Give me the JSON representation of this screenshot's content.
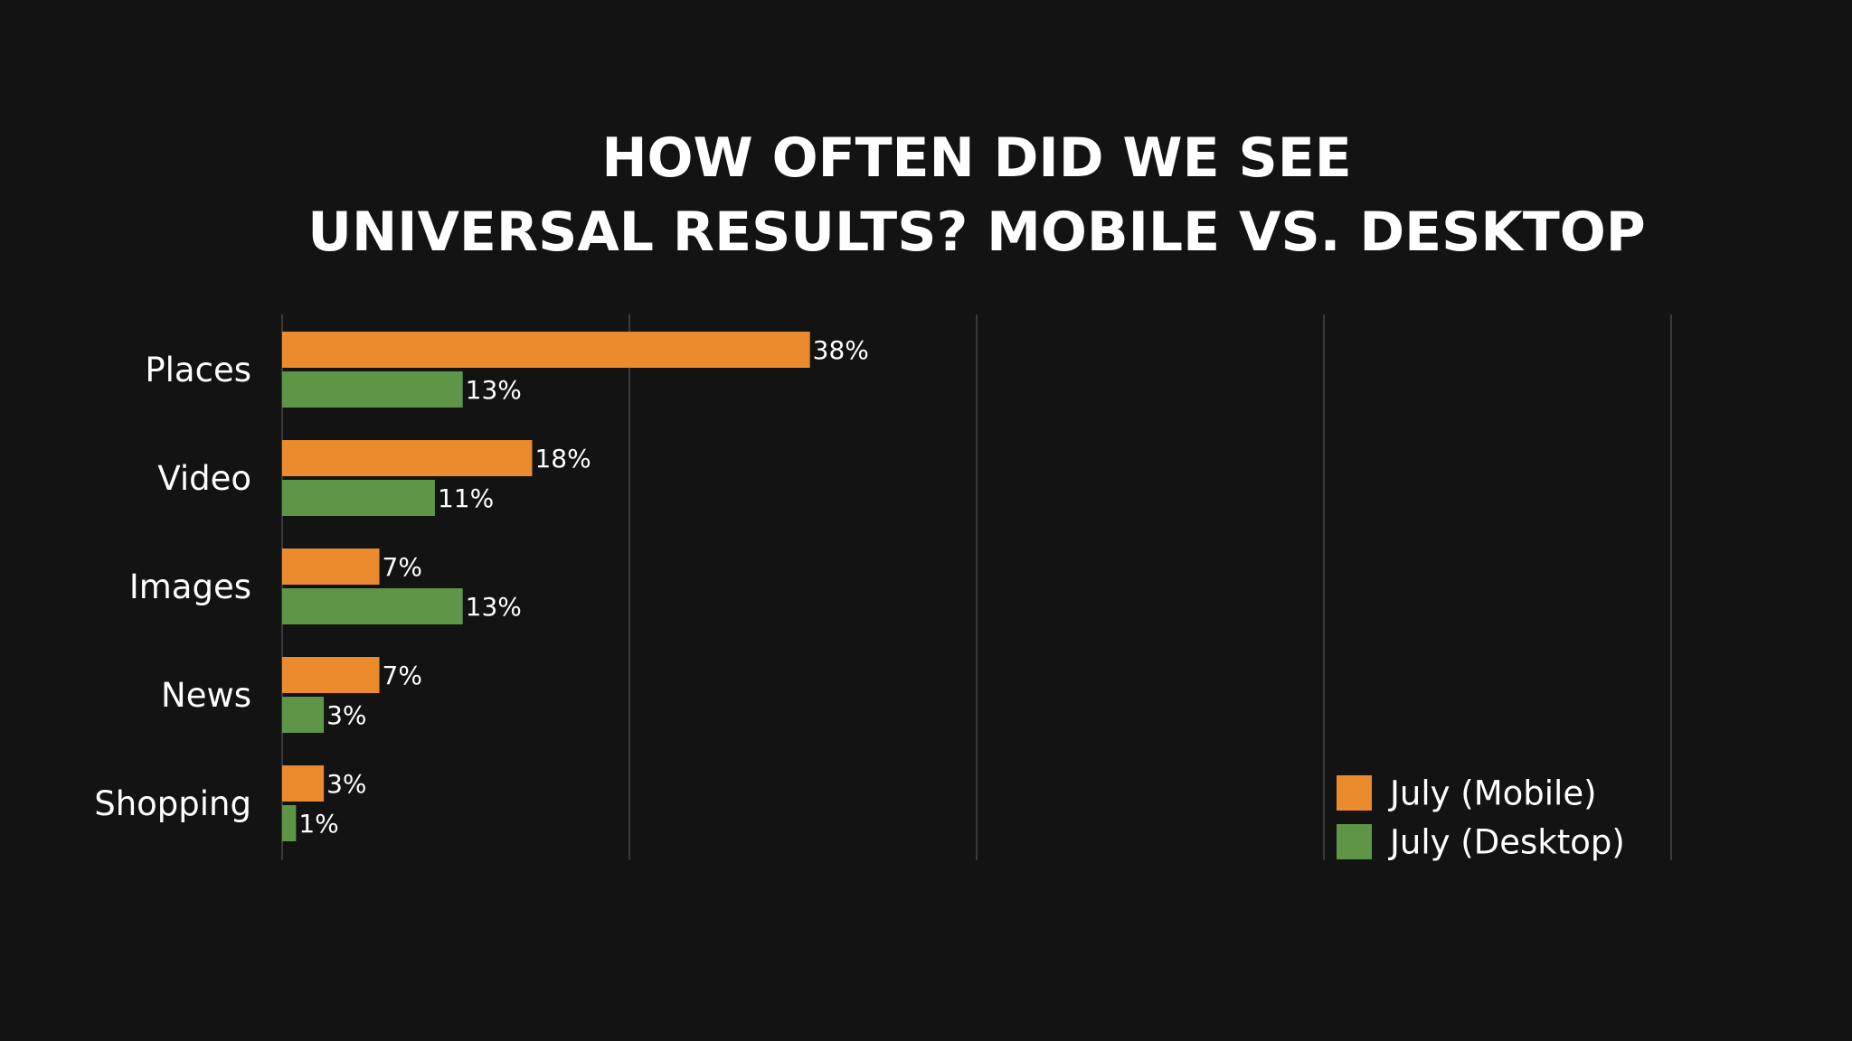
{
  "chart_data": {
    "type": "bar",
    "orientation": "horizontal",
    "title": "HOW OFTEN DID WE SEE UNIVERSAL RESULTS? MOBILE VS. DESKTOP",
    "title_lines": [
      "HOW OFTEN DID WE SEE",
      "UNIVERSAL RESULTS? MOBILE VS. DESKTOP"
    ],
    "categories": [
      "Places",
      "Video",
      "Images",
      "News",
      "Shopping"
    ],
    "series": [
      {
        "name": "July (Mobile)",
        "color": "#EB8B2D",
        "values": [
          38,
          18,
          7,
          7,
          3
        ],
        "labels": [
          "38%",
          "18%",
          "7%",
          "7%",
          "3%"
        ]
      },
      {
        "name": "July (Desktop)",
        "color": "#5E9547",
        "values": [
          13,
          11,
          13,
          3,
          1
        ],
        "labels": [
          "13%",
          "11%",
          "13%",
          "3%",
          "1%"
        ]
      }
    ],
    "xlim": [
      0,
      100
    ],
    "grid_x": [
      0,
      25,
      50,
      75,
      100
    ],
    "grid": true,
    "gridline_color": "#3a3a3c",
    "legend_position": "bottom-right",
    "xlabel": "",
    "ylabel": ""
  }
}
